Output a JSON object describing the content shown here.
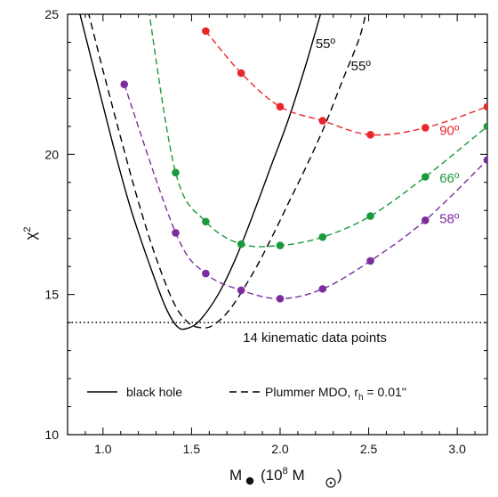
{
  "chart_data": {
    "type": "line",
    "xlabel": "M",
    "xlabel_unit": "(10",
    "xlabel_exp": "8",
    "xlabel_unit_tail": "M",
    "xlabel_unit_close": ")",
    "ylabel": "χ",
    "ylabel_exp": "2",
    "xlim": [
      0.8,
      3.17
    ],
    "ylim": [
      10,
      25
    ],
    "xticks": [
      "1.0",
      "1.5",
      "2.0",
      "2.5",
      "3.0"
    ],
    "xtick_values": [
      1.0,
      1.5,
      2.0,
      2.5,
      3.0
    ],
    "yticks": [
      "10",
      "15",
      "20",
      "25"
    ],
    "ytick_values": [
      10,
      15,
      20,
      25
    ],
    "grid": false,
    "threshold": {
      "value": 14.0,
      "label": "14 kinematic data points",
      "style": "dotted"
    },
    "curves": [
      {
        "name": "black hole",
        "style": "solid",
        "color": "#000000",
        "label": "55º",
        "label_at": [
          2.2,
          23.8
        ],
        "points": [
          [
            0.85,
            25.5
          ],
          [
            0.95,
            23.0
          ],
          [
            1.05,
            20.5
          ],
          [
            1.15,
            18.2
          ],
          [
            1.25,
            16.3
          ],
          [
            1.35,
            14.6
          ],
          [
            1.42,
            13.85
          ],
          [
            1.48,
            13.8
          ],
          [
            1.55,
            14.1
          ],
          [
            1.65,
            15.0
          ],
          [
            1.75,
            16.3
          ],
          [
            1.85,
            17.9
          ],
          [
            1.95,
            19.6
          ],
          [
            2.05,
            21.3
          ],
          [
            2.15,
            23.3
          ],
          [
            2.25,
            25.5
          ]
        ]
      },
      {
        "name": "Plummer MDO, r",
        "name_sub": "h",
        "name_tail": " = 0.01''",
        "style": "dashed",
        "color": "#000000",
        "label": "55º",
        "label_at": [
          2.4,
          23.0
        ],
        "points": [
          [
            0.9,
            25.5
          ],
          [
            1.0,
            23.0
          ],
          [
            1.1,
            20.6
          ],
          [
            1.2,
            18.3
          ],
          [
            1.3,
            16.3
          ],
          [
            1.4,
            14.7
          ],
          [
            1.48,
            14.0
          ],
          [
            1.55,
            13.82
          ],
          [
            1.62,
            13.9
          ],
          [
            1.72,
            14.5
          ],
          [
            1.85,
            15.8
          ],
          [
            1.95,
            17.0
          ],
          [
            2.05,
            18.3
          ],
          [
            2.15,
            19.6
          ],
          [
            2.25,
            21.0
          ],
          [
            2.35,
            22.6
          ],
          [
            2.45,
            24.2
          ],
          [
            2.5,
            25.5
          ]
        ]
      }
    ],
    "series": [
      {
        "name": "90º",
        "color": "#e8262b",
        "label_at": [
          2.9,
          20.7
        ],
        "x": [
          1.58,
          1.78,
          2.0,
          2.24,
          2.51,
          2.82,
          3.17
        ],
        "y": [
          24.4,
          22.9,
          21.7,
          21.2,
          20.7,
          20.95,
          21.7
        ]
      },
      {
        "name": "66º",
        "color": "#1a9a3c",
        "label_at": [
          2.9,
          19.0
        ],
        "x": [
          1.41,
          1.58,
          1.78,
          2.0,
          2.24,
          2.51,
          2.82,
          3.17
        ],
        "y": [
          19.35,
          17.6,
          16.8,
          16.75,
          17.05,
          17.8,
          19.2,
          21.0
        ],
        "start_x": 1.25,
        "start_y": 25.5
      },
      {
        "name": "58º",
        "color": "#7b2d9e",
        "label_at": [
          2.9,
          17.55
        ],
        "x": [
          1.12,
          1.41,
          1.58,
          1.78,
          2.0,
          2.24,
          2.51,
          2.82,
          3.17
        ],
        "y": [
          22.5,
          17.2,
          15.75,
          15.15,
          14.85,
          15.2,
          16.2,
          17.65,
          19.8
        ]
      }
    ],
    "legend": {
      "position": "bottom"
    }
  }
}
